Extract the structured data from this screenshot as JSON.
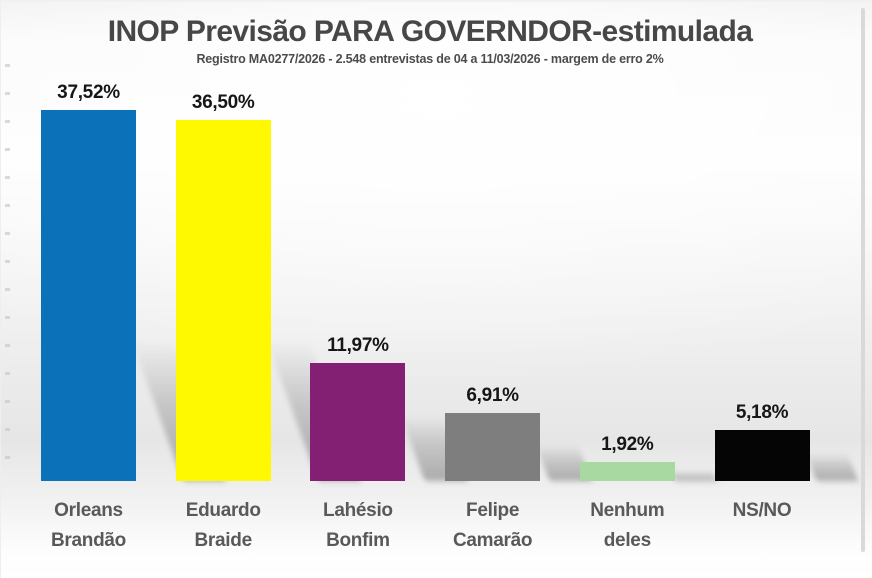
{
  "chart": {
    "title": "INOP Previsão PARA GOVERNDOR-estimulada",
    "subtitle": "Registro MA0277/2026 - 2.548 entrevistas de 04 a 11/03/2026 - margem de erro 2%",
    "title_color": "#474747",
    "value_label_color": "#161616",
    "category_label_color": "#595959"
  },
  "chart_data": {
    "type": "bar",
    "title": "INOP Previsão PARA GOVERNDOR-estimulada",
    "subtitle": "Registro MA0277/2026 - 2.548 entrevistas de 04 a 11/03/2026 - margem de erro 2%",
    "categories": [
      "Orleans Brandão",
      "Eduardo Braide",
      "Lahésio Bonfim",
      "Felipe Camarão",
      "Nenhum deles",
      "NS/NO"
    ],
    "category_lines": [
      [
        "Orleans",
        "Brandão"
      ],
      [
        "Eduardo",
        "Braide"
      ],
      [
        "Lahésio",
        "Bonfim"
      ],
      [
        "Felipe",
        "Camarão"
      ],
      [
        "Nenhum",
        "deles"
      ],
      [
        "NS/NO"
      ]
    ],
    "values": [
      37.52,
      36.5,
      11.97,
      6.91,
      1.92,
      5.18
    ],
    "value_labels": [
      "37,52%",
      "36,50%",
      "11,97%",
      "6,91%",
      "1,92%",
      "5,18%"
    ],
    "colors": [
      "#0b72b9",
      "#fef900",
      "#842074",
      "#7e7e7e",
      "#a8d9a1",
      "#050505"
    ],
    "xlabel": "",
    "ylabel": "",
    "ylim": [
      0,
      40
    ],
    "grid": false,
    "legend": false,
    "data_labels": true
  }
}
